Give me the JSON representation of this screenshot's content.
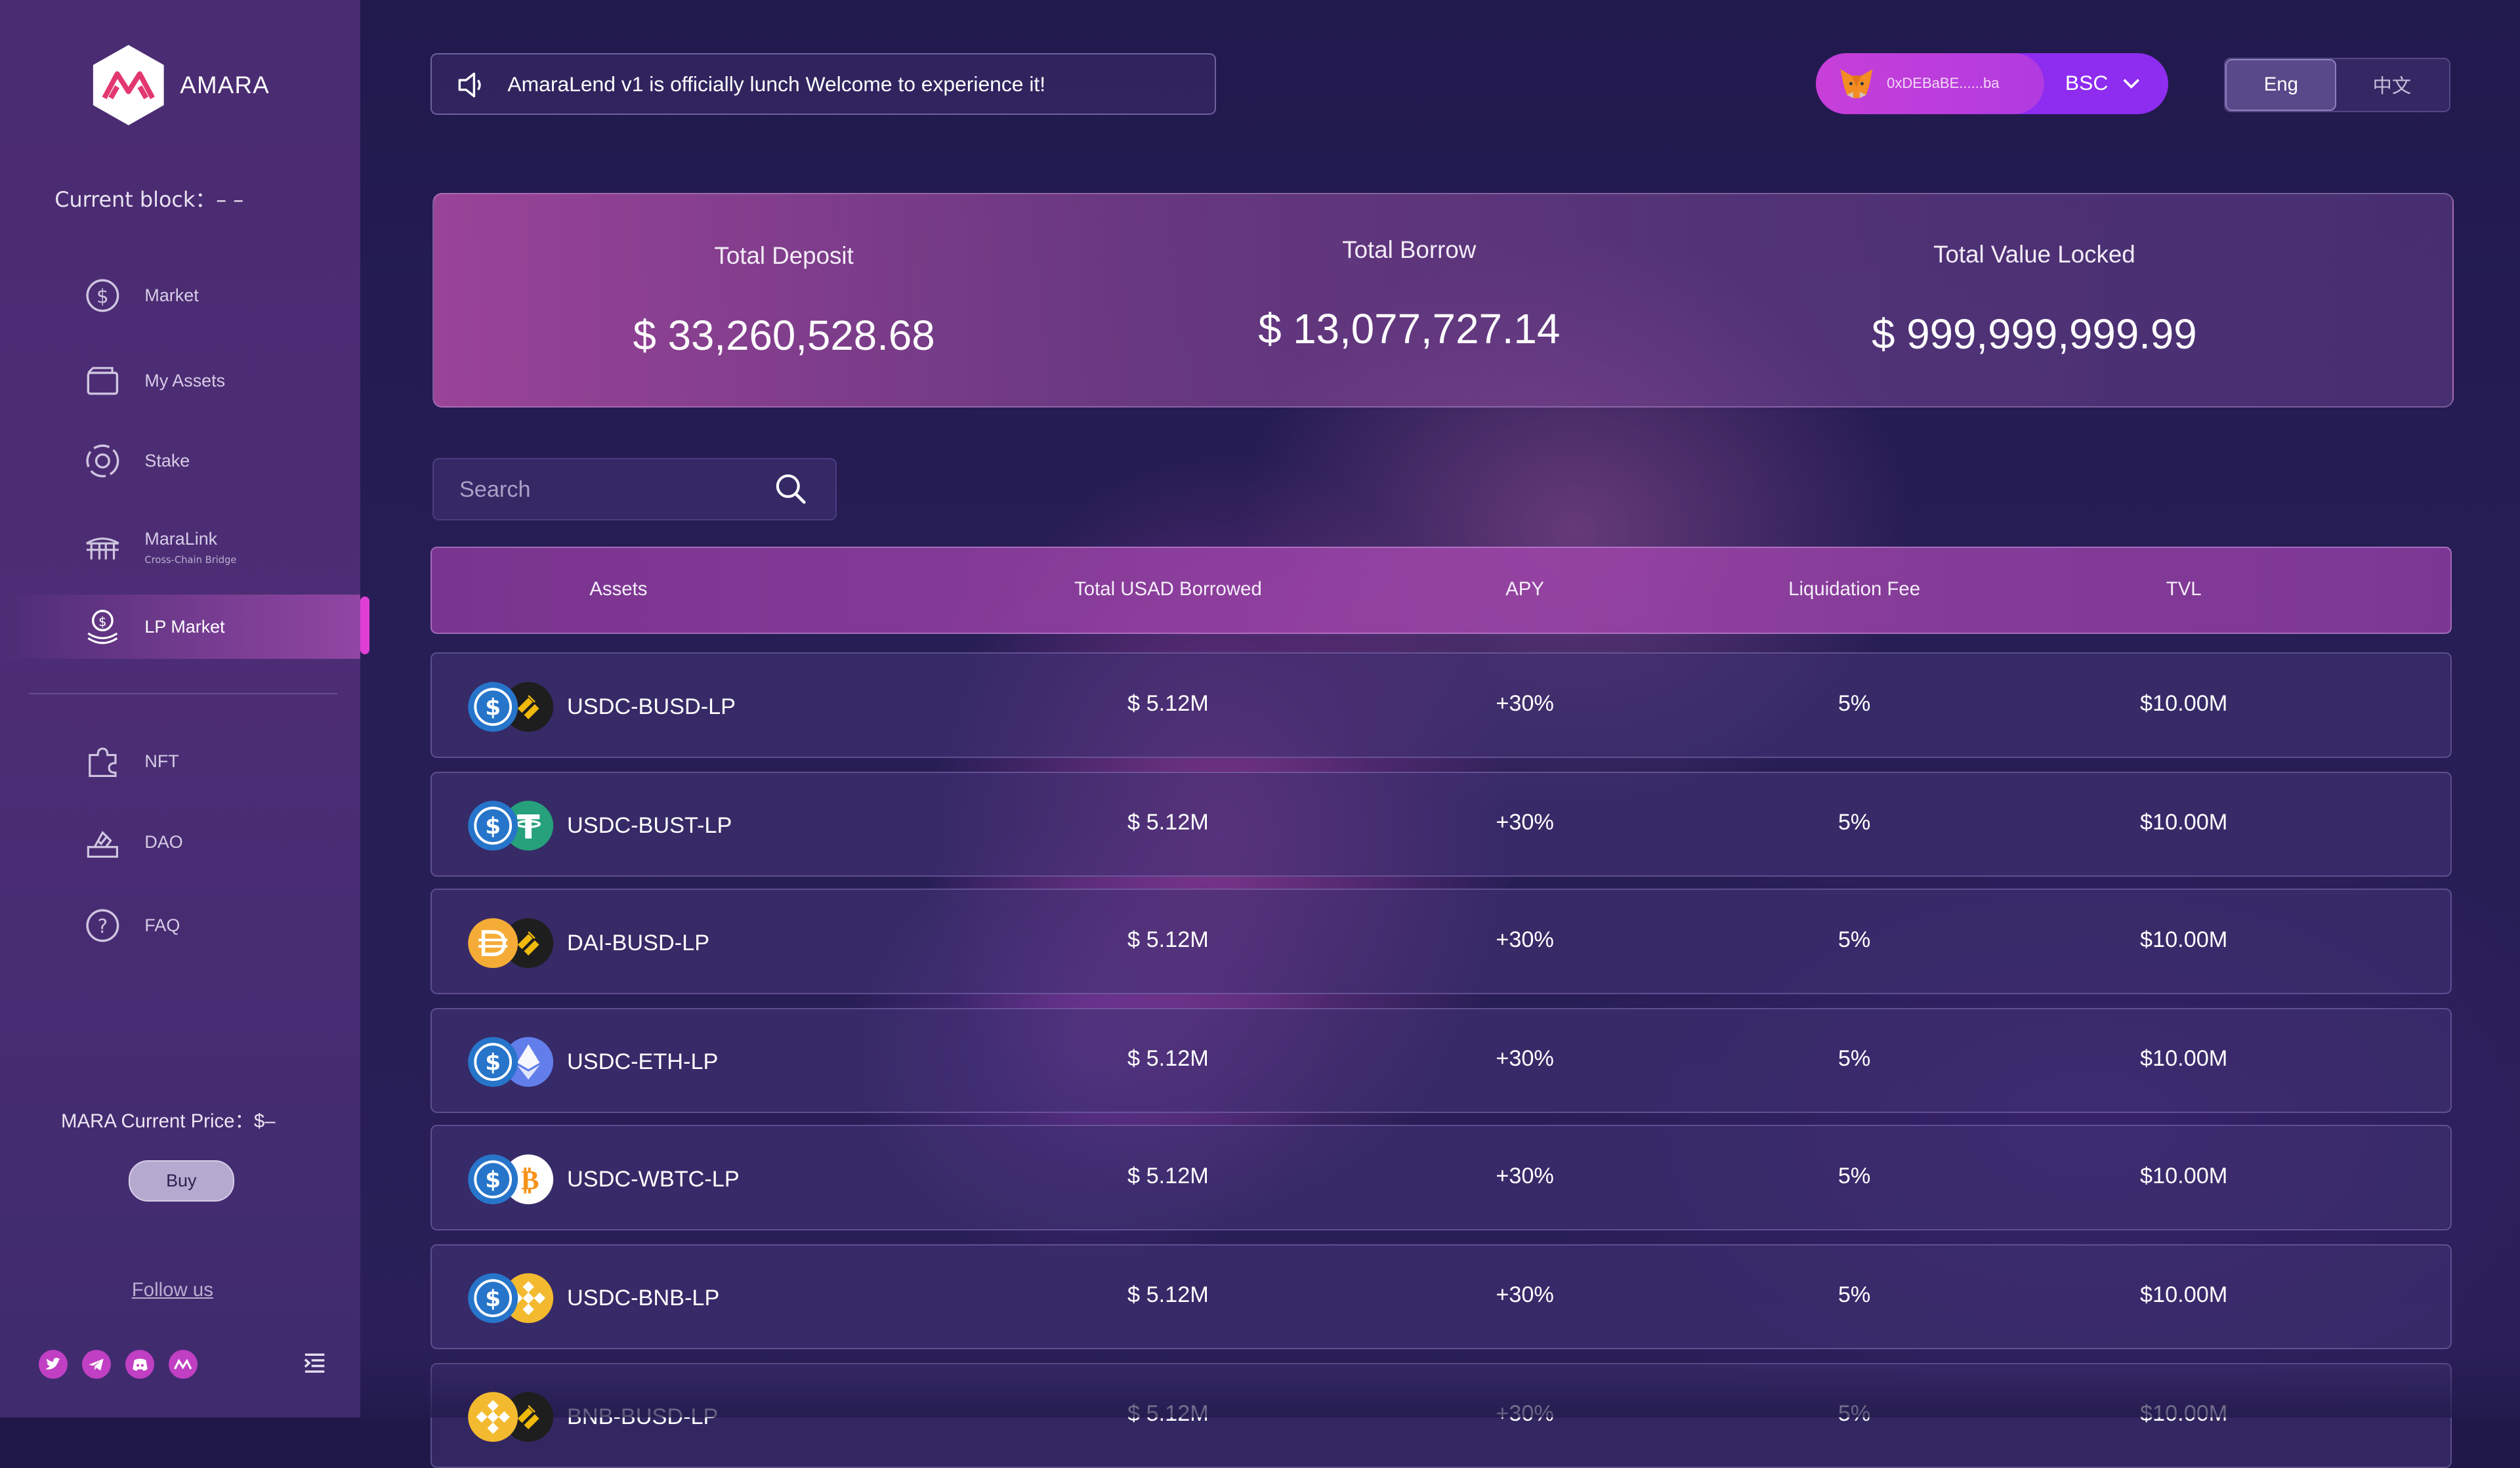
{
  "app": {
    "brand": "AMARA"
  },
  "sidebar": {
    "current_block": "Current block：– –",
    "items": [
      {
        "label": "Market",
        "icon": "dollar-circle-icon"
      },
      {
        "label": "My Assets",
        "icon": "wallet-icon"
      },
      {
        "label": "Stake",
        "icon": "stake-icon"
      },
      {
        "label": "MaraLink",
        "sublabel": "Cross-Chain Bridge",
        "icon": "bridge-icon"
      },
      {
        "label": "LP Market",
        "icon": "lp-coins-icon",
        "active": true
      },
      {
        "label": "NFT",
        "icon": "puzzle-icon"
      },
      {
        "label": "DAO",
        "icon": "vote-icon"
      },
      {
        "label": "FAQ",
        "icon": "question-icon"
      }
    ],
    "price": "MARA Current Price：$–",
    "buy_label": "Buy",
    "follow_label": "Follow us",
    "socials": [
      "twitter-icon",
      "telegram-icon",
      "discord-icon",
      "amara-icon"
    ]
  },
  "header": {
    "notice": "AmaraLend v1 is officially lunch Welcome to experience it!",
    "wallet_address": "0xDEBaBE......ba",
    "network": "BSC",
    "lang_options": [
      "Eng",
      "中文"
    ],
    "lang_selected": "Eng"
  },
  "stats": {
    "total_deposit_label": "Total Deposit",
    "total_deposit_value": "$ 33,260,528.68",
    "total_borrow_label": "Total Borrow",
    "total_borrow_value": "$ 13,077,727.14",
    "tvl_label": "Total Value Locked",
    "tvl_value": "$ 999,999,999.99"
  },
  "search": {
    "placeholder": "Search"
  },
  "table": {
    "headers": {
      "assets": "Assets",
      "borrowed": "Total USAD Borrowed",
      "apy": "APY",
      "fee": "Liquidation Fee",
      "tvl": "TVL"
    },
    "rows": [
      {
        "name": "USDC-BUSD-LP",
        "borrowed": "$ 5.12M",
        "apy": "+30%",
        "fee": "5%",
        "tvl": "$10.00M",
        "token_a": "usdc",
        "token_b": "busd"
      },
      {
        "name": "USDC-BUST-LP",
        "borrowed": "$ 5.12M",
        "apy": "+30%",
        "fee": "5%",
        "tvl": "$10.00M",
        "token_a": "usdc",
        "token_b": "usdt"
      },
      {
        "name": "DAI-BUSD-LP",
        "borrowed": "$ 5.12M",
        "apy": "+30%",
        "fee": "5%",
        "tvl": "$10.00M",
        "token_a": "dai",
        "token_b": "busd"
      },
      {
        "name": "USDC-ETH-LP",
        "borrowed": "$ 5.12M",
        "apy": "+30%",
        "fee": "5%",
        "tvl": "$10.00M",
        "token_a": "usdc",
        "token_b": "eth"
      },
      {
        "name": "USDC-WBTC-LP",
        "borrowed": "$ 5.12M",
        "apy": "+30%",
        "fee": "5%",
        "tvl": "$10.00M",
        "token_a": "usdc",
        "token_b": "wbtc"
      },
      {
        "name": "USDC-BNB-LP",
        "borrowed": "$ 5.12M",
        "apy": "+30%",
        "fee": "5%",
        "tvl": "$10.00M",
        "token_a": "usdc",
        "token_b": "bnb"
      },
      {
        "name": "BNB-BUSD-LP",
        "borrowed": "$ 5.12M",
        "apy": "+30%",
        "fee": "5%",
        "tvl": "$10.00M",
        "token_a": "bnb",
        "token_b": "busd"
      }
    ]
  },
  "colors": {
    "accent": "#e03fd6",
    "wallet": "#8e2cf0",
    "sidebar": "#4a2c72",
    "background": "#1f1848"
  }
}
